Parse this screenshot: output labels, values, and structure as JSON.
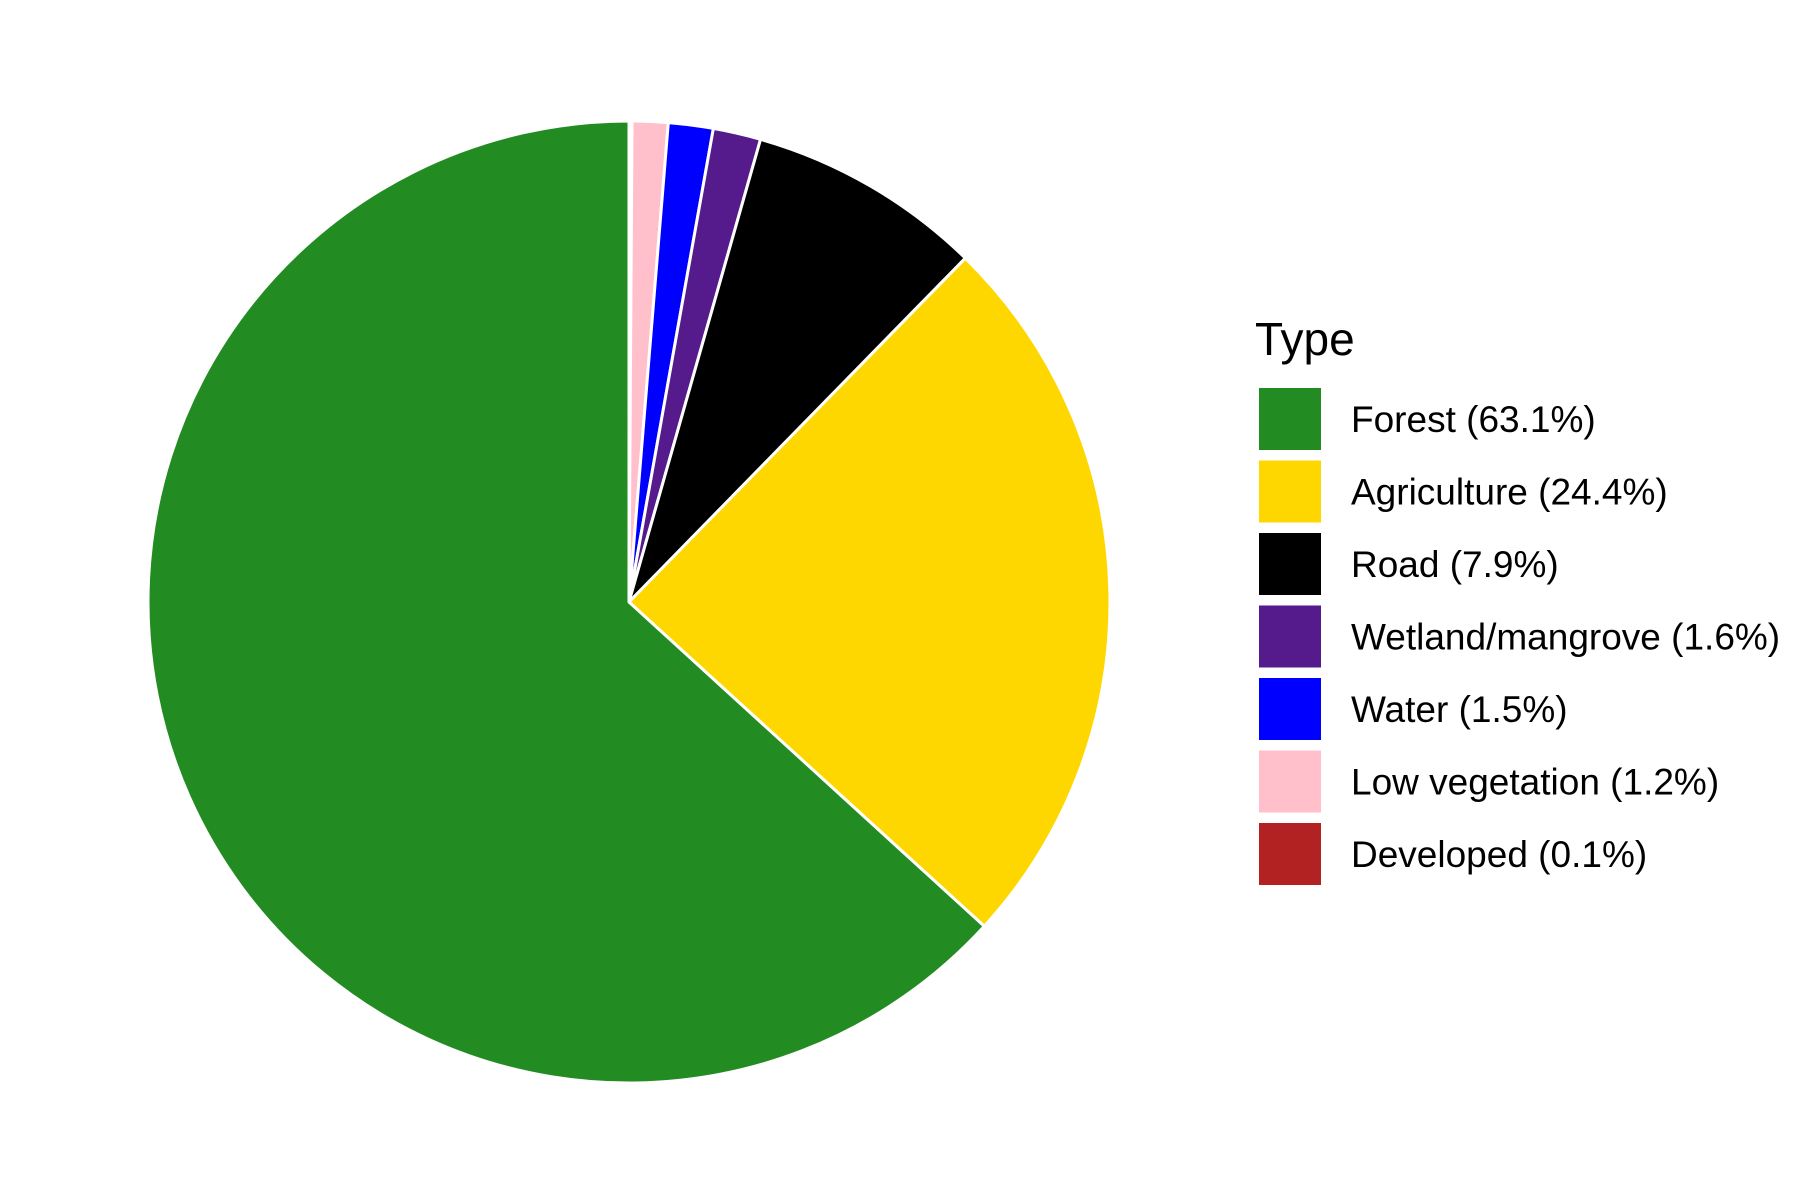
{
  "chart_data": {
    "type": "pie",
    "title": "",
    "legend": {
      "title": "Type",
      "placement": "right"
    },
    "start": "top",
    "direction": "clockwise-from-smallest",
    "slices": [
      {
        "label": "Forest (63.1%)",
        "category": "Forest",
        "value": 63.1,
        "color": "#228B22"
      },
      {
        "label": "Agriculture (24.4%)",
        "category": "Agriculture",
        "value": 24.4,
        "color": "#FFD700"
      },
      {
        "label": "Road (7.9%)",
        "category": "Road",
        "value": 7.9,
        "color": "#000000"
      },
      {
        "label": "Wetland/mangrove (1.6%)",
        "category": "Wetland/mangrove",
        "value": 1.6,
        "color": "#551A8B"
      },
      {
        "label": "Water (1.5%)",
        "category": "Water",
        "value": 1.5,
        "color": "#0000FF"
      },
      {
        "label": "Low vegetation (1.2%)",
        "category": "Low vegetation",
        "value": 1.2,
        "color": "#FFC0CB"
      },
      {
        "label": "Developed (0.1%)",
        "category": "Developed",
        "value": 0.1,
        "color": "#B22222"
      }
    ]
  }
}
